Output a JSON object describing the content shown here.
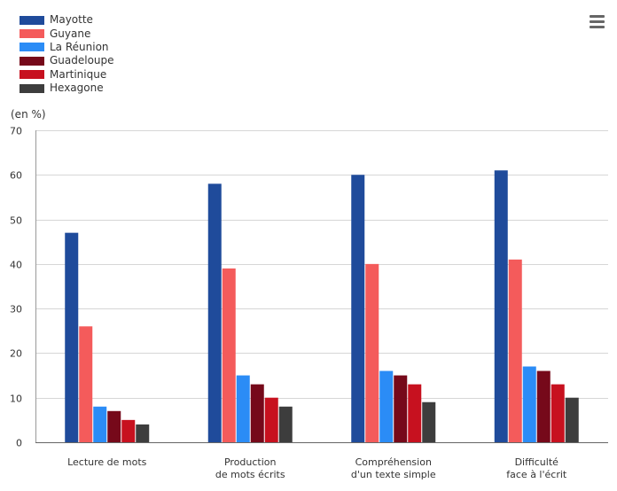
{
  "chart_data": {
    "type": "bar",
    "categories": [
      [
        "Lecture de mots"
      ],
      [
        "Production",
        "de mots écrits"
      ],
      [
        "Compréhension",
        "d'un texte simple"
      ],
      [
        "Difficulté",
        "face à l'écrit"
      ]
    ],
    "series": [
      {
        "name": "Mayotte",
        "color": "#1f4b9b",
        "values": [
          47,
          58,
          60,
          61
        ]
      },
      {
        "name": "Guyane",
        "color": "#f45b5b",
        "values": [
          26,
          39,
          40,
          41
        ]
      },
      {
        "name": "La Réunion",
        "color": "#2b8cf6",
        "values": [
          8,
          15,
          16,
          17
        ]
      },
      {
        "name": "Guadeloupe",
        "color": "#76091a",
        "values": [
          7,
          13,
          15,
          16
        ]
      },
      {
        "name": "Martinique",
        "color": "#c7111f",
        "values": [
          5,
          10,
          13,
          13
        ]
      },
      {
        "name": "Hexagone",
        "color": "#3d3d3d",
        "values": [
          4,
          8,
          9,
          10
        ]
      }
    ],
    "ylabel": "(en %)",
    "ylim": [
      0,
      70
    ],
    "yticks": [
      0,
      10,
      20,
      30,
      40,
      50,
      60,
      70
    ],
    "grid": true,
    "legend_position": "top-left"
  },
  "menu": {
    "icon": "hamburger-menu-icon"
  }
}
